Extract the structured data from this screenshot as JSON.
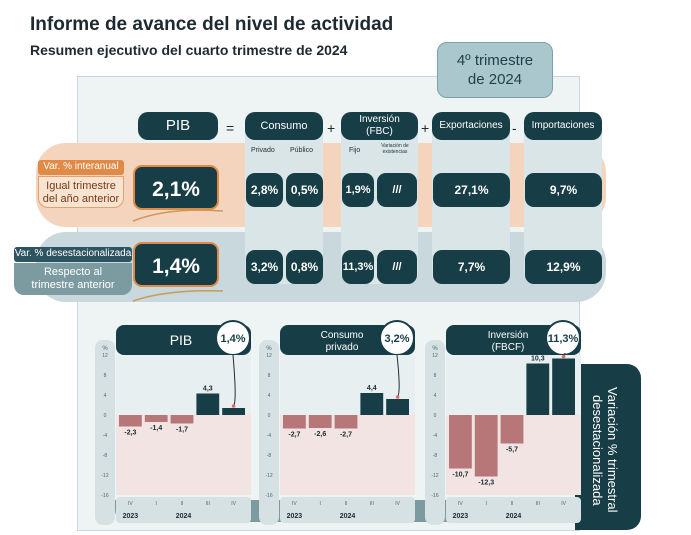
{
  "header": {
    "title": "Informe de avance del nivel de actividad",
    "subtitle": "Resumen ejecutivo del cuarto trimestre de 2024",
    "quarter_line1": "4º trimestre",
    "quarter_line2": "de 2024"
  },
  "equation": {
    "pib": "PIB",
    "eq": "=",
    "plus1": "+",
    "plus2": "+",
    "minus": "-",
    "consumo": "Consumo",
    "consumo_privado": "Privado",
    "consumo_publico": "Público",
    "inversion_line1": "Inversión",
    "inversion_line2": "(FBC)",
    "inversion_fijo": "Fijo",
    "inversion_var": "Variación de existencias",
    "exportaciones": "Exportaciones",
    "importaciones": "Importaciones"
  },
  "rows": {
    "interanual_label": "Var. % interanual",
    "interanual_desc1": "Igual trimestre",
    "interanual_desc2": "del año anterior",
    "desest_label": "Var. % desestacionalizada",
    "desest_desc1": "Respecto al",
    "desest_desc2": "trimestre anterior",
    "interanual": {
      "pib": "2,1%",
      "privado": "2,8%",
      "publico": "0,5%",
      "fijo": "1,9%",
      "var": "///",
      "exportaciones": "27,1%",
      "importaciones": "9,7%"
    },
    "desest": {
      "pib": "1,4%",
      "privado": "3,2%",
      "publico": "0,8%",
      "fijo": "11,3%",
      "var": "///",
      "exportaciones": "7,7%",
      "importaciones": "12,9%"
    }
  },
  "charts": {
    "side_label": "Variación % trimestral desestacionalizada",
    "pct_symbol": "%",
    "y_ticks": [
      "12",
      "8",
      "4",
      "0",
      "-4",
      "-8",
      "-12",
      "-16"
    ],
    "quarters": [
      "IV",
      "I",
      "II",
      "III",
      "IV"
    ],
    "year1": "2023",
    "year2": "2024"
  },
  "chart_data": [
    {
      "type": "bar",
      "title": "PIB",
      "badge": "1,4%",
      "categories": [
        "IV 2023",
        "I 2024",
        "II 2024",
        "III 2024",
        "IV 2024"
      ],
      "values": [
        -2.3,
        -1.4,
        -1.7,
        4.3,
        1.4
      ],
      "labels": [
        "-2,3",
        "-1,4",
        "-1,7",
        "4,3",
        ""
      ],
      "ylim": [
        -16,
        12
      ]
    },
    {
      "type": "bar",
      "title_line1": "Consumo",
      "title_line2": "privado",
      "badge": "3,2%",
      "categories": [
        "IV 2023",
        "I 2024",
        "II 2024",
        "III 2024",
        "IV 2024"
      ],
      "values": [
        -2.7,
        -2.6,
        -2.7,
        4.4,
        3.2
      ],
      "labels": [
        "-2,7",
        "-2,6",
        "-2,7",
        "4,4",
        ""
      ],
      "ylim": [
        -16,
        12
      ]
    },
    {
      "type": "bar",
      "title_line1": "Inversión",
      "title_line2": "(FBCF)",
      "badge": "11,3%",
      "categories": [
        "IV 2023",
        "I 2024",
        "II 2024",
        "III 2024",
        "IV 2024"
      ],
      "values": [
        -10.7,
        -12.3,
        -5.7,
        10.3,
        11.3
      ],
      "labels": [
        "-10,7",
        "-12,3",
        "-5,7",
        "10,3",
        ""
      ],
      "ylim": [
        -16,
        12
      ]
    }
  ],
  "colors": {
    "dark": "#173d46",
    "negative": "#b77778",
    "negative_bg": "#f1e4e3",
    "positive_bg": "#e8eff0",
    "orange": "#e08a45"
  }
}
